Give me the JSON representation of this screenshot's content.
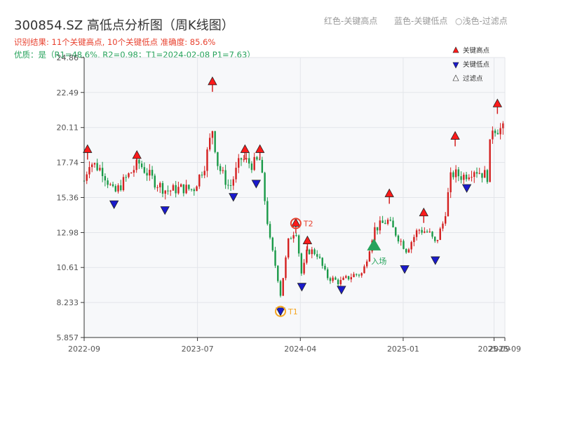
{
  "header": {
    "title": "300854.SZ 高低点分析图（周K线图）",
    "result": "识别结果: 11个关键高点, 10个关键低点  准确度: 85.6%",
    "quality": "优质：是（R1=48.6%, R2=0.98；T1=2024-02-08 P1=7.63）",
    "legend_red": "红色-关键高点",
    "legend_blue": "蓝色-关键低点",
    "legend_light": "○浅色-过滤点"
  },
  "colors": {
    "up": "#d42020",
    "down": "#1a9a48",
    "high": "#ff1a1a",
    "low": "#1a1acc",
    "filtered": "#ffffff",
    "t1": "#f5a623",
    "t2": "#e8412f",
    "entry": "#27a35c",
    "plot_bg": "#f7f8fa",
    "grid": "#e3e5ea"
  },
  "chart_data": {
    "type": "candlestick",
    "title": "300854.SZ 高低点分析图（周K线图）",
    "y_ticks": [
      "5.857",
      "8.233",
      "10.61",
      "12.98",
      "15.36",
      "17.74",
      "20.11",
      "22.49",
      "24.86"
    ],
    "ylim": [
      5.857,
      24.86
    ],
    "x_range": [
      "2022-09-01",
      "2025-09-30"
    ],
    "x_ticks": [
      {
        "date": "2022-09-01",
        "label": "2022-09"
      },
      {
        "date": "2023-07-01",
        "label": "2023-07"
      },
      {
        "date": "2024-04-01",
        "label": "2024-04"
      },
      {
        "date": "2025-01-01",
        "label": "2025-01"
      },
      {
        "date": "2025-09-01",
        "label": "2025-09"
      },
      {
        "date": "2025-09-30",
        "label": "2025-09"
      }
    ],
    "price_path": [
      [
        "2022-09-01",
        16.5
      ],
      [
        "2022-09-15",
        17.8
      ],
      [
        "2022-10-20",
        17.2
      ],
      [
        "2022-11-20",
        15.6
      ],
      [
        "2022-12-20",
        16.6
      ],
      [
        "2023-01-25",
        17.7
      ],
      [
        "2023-03-10",
        16.4
      ],
      [
        "2023-04-10",
        15.8
      ],
      [
        "2023-05-20",
        16.0
      ],
      [
        "2023-06-20",
        15.9
      ],
      [
        "2023-07-20",
        17.6
      ],
      [
        "2023-08-10",
        20.0
      ],
      [
        "2023-08-25",
        17.5
      ],
      [
        "2023-09-25",
        16.0
      ],
      [
        "2023-10-25",
        18.0
      ],
      [
        "2023-11-25",
        17.6
      ],
      [
        "2023-12-15",
        17.9
      ],
      [
        "2024-01-10",
        12.5
      ],
      [
        "2024-01-30",
        10.2
      ],
      [
        "2024-02-08",
        8.8
      ],
      [
        "2024-03-01",
        12.5
      ],
      [
        "2024-03-20",
        13.3
      ],
      [
        "2024-04-05",
        10.0
      ],
      [
        "2024-04-20",
        11.8
      ],
      [
        "2024-05-15",
        11.6
      ],
      [
        "2024-06-10",
        10.0
      ],
      [
        "2024-07-15",
        9.6
      ],
      [
        "2024-08-20",
        10.1
      ],
      [
        "2024-09-15",
        10.2
      ],
      [
        "2024-10-15",
        13.2
      ],
      [
        "2024-11-20",
        13.8
      ],
      [
        "2025-01-10",
        11.8
      ],
      [
        "2025-02-10",
        13.2
      ],
      [
        "2025-03-10",
        13.0
      ],
      [
        "2025-03-28",
        12.2
      ],
      [
        "2025-04-20",
        13.8
      ],
      [
        "2025-05-10",
        17.0
      ],
      [
        "2025-06-10",
        16.8
      ],
      [
        "2025-07-10",
        17.3
      ],
      [
        "2025-08-15",
        16.8
      ],
      [
        "2025-08-25",
        20.2
      ],
      [
        "2025-09-30",
        19.9
      ]
    ],
    "key_highs": [
      {
        "date": "2022-09-10",
        "price": 18.6
      },
      {
        "date": "2023-01-20",
        "price": 18.2
      },
      {
        "date": "2023-08-10",
        "price": 23.2
      },
      {
        "date": "2023-11-05",
        "price": 18.6
      },
      {
        "date": "2023-12-15",
        "price": 18.6
      },
      {
        "date": "2024-03-20",
        "price": 13.6
      },
      {
        "date": "2024-04-20",
        "price": 12.4
      },
      {
        "date": "2024-11-25",
        "price": 15.6
      },
      {
        "date": "2025-02-25",
        "price": 14.3
      },
      {
        "date": "2025-05-20",
        "price": 19.5
      },
      {
        "date": "2025-09-10",
        "price": 21.7
      }
    ],
    "key_lows": [
      {
        "date": "2022-11-20",
        "price": 14.9
      },
      {
        "date": "2023-04-05",
        "price": 14.5
      },
      {
        "date": "2023-10-05",
        "price": 15.4
      },
      {
        "date": "2023-12-05",
        "price": 16.3
      },
      {
        "date": "2024-02-08",
        "price": 7.63
      },
      {
        "date": "2024-04-05",
        "price": 9.3
      },
      {
        "date": "2024-07-20",
        "price": 9.1
      },
      {
        "date": "2025-01-05",
        "price": 10.5
      },
      {
        "date": "2025-03-28",
        "price": 11.1
      },
      {
        "date": "2025-06-20",
        "price": 16.0
      }
    ],
    "t1": {
      "date": "2024-02-08",
      "price": 7.63,
      "label": "T1"
    },
    "t2": {
      "date": "2024-03-20",
      "price": 13.6,
      "label": "T2"
    },
    "entry": {
      "date": "2024-10-15",
      "price": 12.1,
      "label": "入场"
    },
    "legend": [
      "关键高点",
      "关键低点",
      "过滤点"
    ]
  }
}
